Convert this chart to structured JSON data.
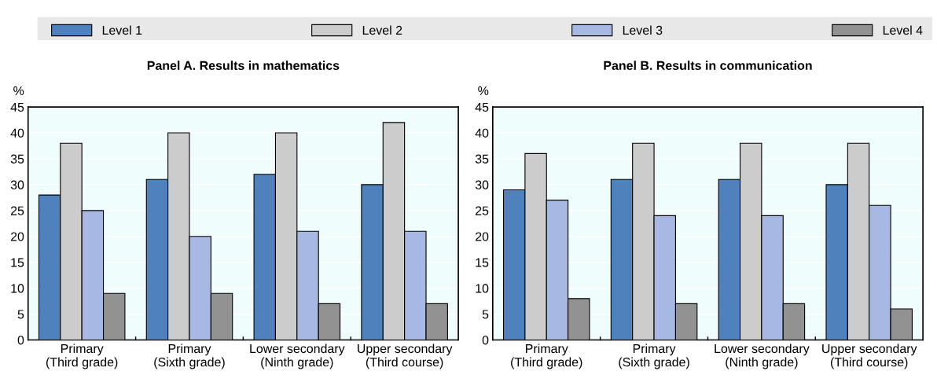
{
  "chart_data": [
    {
      "type": "bar",
      "title": "Panel A. Results in mathematics",
      "ylabel": "%",
      "categories": [
        "Primary\n(Third grade)",
        "Primary\n(Sixth grade)",
        "Lower secondary\n(Ninth grade)",
        "Upper secondary\n(Third course)"
      ],
      "series": [
        {
          "name": "Level 1",
          "color": "#4f81bd",
          "values": [
            28,
            31,
            32,
            30
          ]
        },
        {
          "name": "Level 2",
          "color": "#cccccc",
          "values": [
            38,
            40,
            40,
            42
          ]
        },
        {
          "name": "Level 3",
          "color": "#a7b8e3",
          "values": [
            25,
            20,
            21,
            21
          ]
        },
        {
          "name": "Level 4",
          "color": "#929292",
          "values": [
            9,
            9,
            7,
            7
          ]
        }
      ],
      "ylim": [
        0,
        45
      ],
      "yticks": [
        0,
        5,
        10,
        15,
        20,
        25,
        30,
        35,
        40,
        45
      ],
      "grid": "y",
      "legend": "top"
    },
    {
      "type": "bar",
      "title": "Panel B. Results in communication",
      "ylabel": "%",
      "categories": [
        "Primary\n(Third grade)",
        "Primary\n(Sixth grade)",
        "Lower secondary\n(Ninth grade)",
        "Upper secondary\n(Third course)"
      ],
      "series": [
        {
          "color": "#4f81bd",
          "values": [
            29,
            31,
            31,
            30
          ]
        },
        {
          "color": "#cccccc",
          "values": [
            36,
            38,
            38,
            38
          ]
        },
        {
          "color": "#a7b8e3",
          "values": [
            27,
            24,
            24,
            26
          ]
        },
        {
          "color": "#929292",
          "values": [
            8,
            7,
            7,
            6
          ]
        }
      ],
      "ylim": [
        0,
        45
      ],
      "yticks": [
        0,
        5,
        10,
        15,
        20,
        25,
        30,
        35,
        40,
        45
      ],
      "grid": "y"
    }
  ]
}
